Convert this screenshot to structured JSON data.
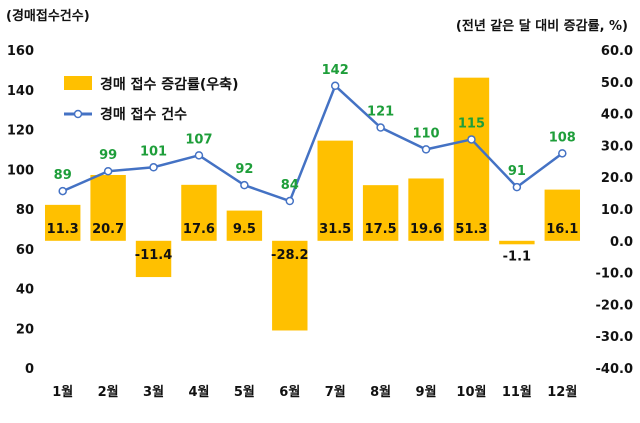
{
  "chart_data": {
    "type": "bar+line",
    "left_axis_title": "(경매접수건수)",
    "right_axis_title": "(전년 같은 달 대비 증감률, %)",
    "categories": [
      "1월",
      "2월",
      "3월",
      "4월",
      "5월",
      "6월",
      "7월",
      "8월",
      "9월",
      "10월",
      "11월",
      "12월"
    ],
    "left_axis": {
      "min": 0,
      "max": 160,
      "ticks": [
        "0",
        "20",
        "40",
        "60",
        "80",
        "100",
        "120",
        "140",
        "160"
      ]
    },
    "right_axis": {
      "min": -40,
      "max": 60,
      "ticks": [
        "-40.0",
        "-30.0",
        "-20.0",
        "-10.0",
        "0.0",
        "10.0",
        "20.0",
        "30.0",
        "40.0",
        "50.0",
        "60.0"
      ]
    },
    "series": [
      {
        "name": "경매 접수 증감률(우축)",
        "type": "bar",
        "axis": "right",
        "values": [
          11.3,
          20.7,
          -11.4,
          17.6,
          9.5,
          -28.2,
          31.5,
          17.5,
          19.6,
          51.3,
          -1.1,
          16.1
        ],
        "labels": [
          "11.3",
          "20.7",
          "-11.4",
          "17.6",
          "9.5",
          "-28.2",
          "31.5",
          "17.5",
          "19.6",
          "51.3",
          "-1.1",
          "16.1"
        ]
      },
      {
        "name": "경매 접수 건수",
        "type": "line",
        "axis": "left",
        "values": [
          89,
          99,
          101,
          107,
          92,
          84,
          142,
          121,
          110,
          115,
          91,
          108
        ],
        "labels": [
          "89",
          "99",
          "101",
          "107",
          "92",
          "84",
          "142",
          "121",
          "110",
          "115",
          "91",
          "108"
        ]
      }
    ],
    "colors": {
      "bar": "#ffc000",
      "line": "#4472c4",
      "marker_fill": "#ffffff",
      "point_label": "#1e9e3a"
    },
    "legend_position": "top-left",
    "grid": false
  }
}
